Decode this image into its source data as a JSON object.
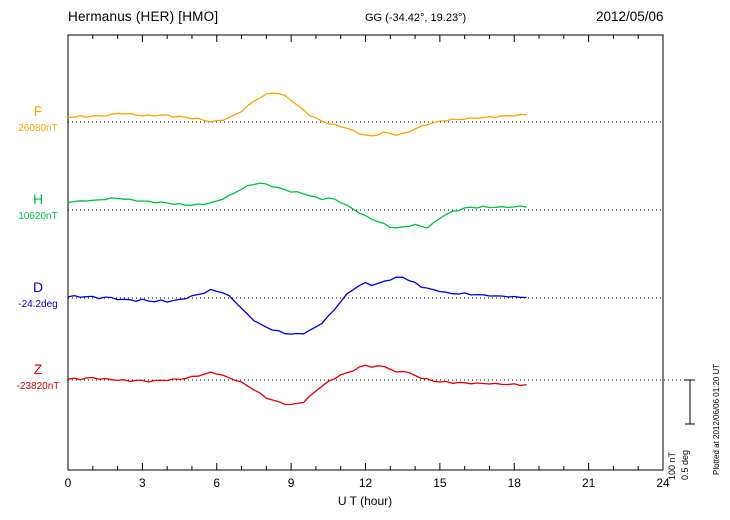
{
  "header": {
    "station_title": "Hermanus (HER)  [HMO]",
    "gg_coords": "GG (-34.42°,  19.23°)",
    "date": "2012/05/06"
  },
  "axis": {
    "x_label": "U T (hour)",
    "x_ticks": [
      0,
      3,
      6,
      9,
      12,
      15,
      18,
      21,
      24
    ],
    "x_range": [
      0,
      24
    ]
  },
  "scale_bar": {
    "nt_label": "100 nT",
    "deg_label": "0.5 deg"
  },
  "footer": {
    "plotted_at": "Plotted at 2012/06/06 01:20 UT"
  },
  "chart_data": {
    "type": "line",
    "title": "Hermanus (HER) [HMO] magnetogram 2012/05/06",
    "x_unit": "UT hour",
    "x_start": 0,
    "x_step": 0.25,
    "x_end": 18.5,
    "values_are": "deviation from baseline_value",
    "grid": "dotted horizontal baseline per component",
    "series": [
      {
        "label": "F",
        "baseline_label": "26080nT",
        "baseline_value": 26080,
        "unit": "nT",
        "color": "#FFA300",
        "values": [
          11,
          12,
          13,
          12,
          14,
          13,
          15,
          17,
          19,
          20,
          18,
          16,
          15,
          14,
          15,
          16,
          15,
          13,
          12,
          10,
          9,
          7,
          4,
          1,
          2,
          5,
          10,
          16,
          25,
          36,
          47,
          56,
          62,
          66,
          65,
          59,
          50,
          38,
          27,
          16,
          8,
          2,
          -3,
          -7,
          -10,
          -14,
          -20,
          -26,
          -30,
          -32,
          -28,
          -24,
          -26,
          -29,
          -27,
          -22,
          -16,
          -10,
          -5,
          -2,
          2,
          4,
          5,
          6,
          7,
          8,
          9,
          10,
          11,
          12,
          13,
          14,
          15,
          16,
          17
        ]
      },
      {
        "label": "H",
        "baseline_label": "10620nT",
        "baseline_value": 10620,
        "unit": "nT",
        "color": "#00C040",
        "values": [
          18,
          19,
          20,
          22,
          21,
          23,
          25,
          26,
          27,
          25,
          23,
          22,
          20,
          19,
          18,
          17,
          16,
          14,
          13,
          12,
          11,
          12,
          14,
          16,
          20,
          26,
          32,
          40,
          48,
          54,
          59,
          61,
          58,
          54,
          50,
          46,
          42,
          40,
          37,
          33,
          28,
          25,
          27,
          24,
          18,
          10,
          2,
          -6,
          -14,
          -20,
          -26,
          -32,
          -38,
          -41,
          -39,
          -36,
          -34,
          -37,
          -40,
          -30,
          -18,
          -10,
          -4,
          0,
          4,
          6,
          6,
          7,
          6,
          7,
          6,
          7,
          7,
          8,
          8
        ]
      },
      {
        "label": "D",
        "baseline_label": "-24.2deg",
        "baseline_value": -24.2,
        "unit": "deg",
        "color": "#0000DD",
        "values": [
          0.02,
          0.02,
          0.01,
          0.02,
          0.01,
          0.0,
          0.01,
          0.0,
          -0.01,
          -0.02,
          -0.02,
          -0.03,
          -0.02,
          -0.03,
          -0.04,
          -0.03,
          -0.04,
          -0.03,
          -0.02,
          0.0,
          0.02,
          0.04,
          0.06,
          0.09,
          0.08,
          0.06,
          0.02,
          -0.04,
          -0.12,
          -0.19,
          -0.25,
          -0.3,
          -0.33,
          -0.36,
          -0.38,
          -0.4,
          -0.41,
          -0.41,
          -0.4,
          -0.37,
          -0.33,
          -0.28,
          -0.21,
          -0.13,
          -0.04,
          0.04,
          0.1,
          0.14,
          0.17,
          0.15,
          0.16,
          0.19,
          0.21,
          0.23,
          0.24,
          0.2,
          0.17,
          0.13,
          0.11,
          0.09,
          0.08,
          0.06,
          0.05,
          0.05,
          0.05,
          0.04,
          0.04,
          0.03,
          0.03,
          0.02,
          0.02,
          0.02,
          0.01,
          0.01,
          0.01
        ]
      },
      {
        "label": "Z",
        "baseline_label": "-23820nT",
        "baseline_value": -23820,
        "unit": "nT",
        "color": "#E00000",
        "values": [
          2,
          3,
          2,
          4,
          5,
          3,
          2,
          1,
          0,
          -1,
          -2,
          -1,
          -2,
          -3,
          -2,
          -1,
          0,
          1,
          2,
          4,
          7,
          10,
          13,
          17,
          15,
          10,
          5,
          0,
          -6,
          -13,
          -22,
          -31,
          -40,
          -46,
          -50,
          -54,
          -57,
          -53,
          -50,
          -38,
          -24,
          -14,
          -4,
          4,
          11,
          16,
          22,
          28,
          34,
          30,
          31,
          32,
          24,
          17,
          21,
          16,
          10,
          5,
          1,
          -2,
          -4,
          -5,
          -6,
          -6,
          -7,
          -7,
          -8,
          -8,
          -8,
          -9,
          -9,
          -10,
          -10,
          -11,
          -11
        ]
      }
    ]
  }
}
